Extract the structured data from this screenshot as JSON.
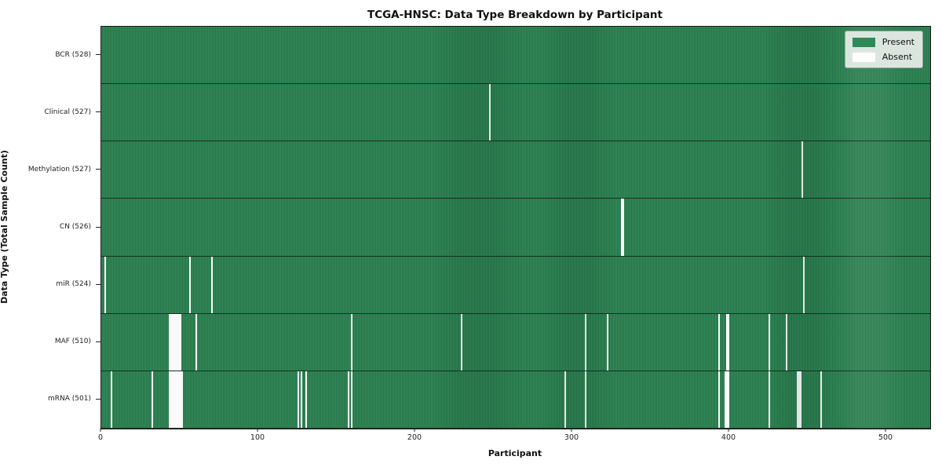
{
  "title": "TCGA-HNSC: Data Type Breakdown by Participant",
  "chart_data": {
    "type": "heatmap",
    "title": "TCGA-HNSC: Data Type Breakdown by Participant",
    "xlabel": "Participant",
    "ylabel": "Data Type (Total Sample Count)",
    "x_range": [
      0,
      528
    ],
    "x_ticks": [
      0,
      100,
      200,
      300,
      400,
      500
    ],
    "grid": false,
    "legend_position": "upper right",
    "legend": [
      {
        "label": "Present",
        "color": "#2e8b57"
      },
      {
        "label": "Absent",
        "color": "#ffffff"
      }
    ],
    "colors": {
      "present": "#2e8b57",
      "present_edge": "#215c3c",
      "absent": "#fafafa",
      "row_separator": "#17301f",
      "spine": "#1a1a1a"
    },
    "rows": [
      {
        "label": "BCR (528)",
        "total": 528,
        "absent_participants": []
      },
      {
        "label": "Clinical (527)",
        "total": 527,
        "absent_participants": [
          247
        ]
      },
      {
        "label": "Methylation (527)",
        "total": 527,
        "absent_participants": [
          446
        ]
      },
      {
        "label": "CN (526)",
        "total": 526,
        "absent_participants": [
          331,
          332
        ]
      },
      {
        "label": "miR (524)",
        "total": 524,
        "absent_participants": [
          2,
          56,
          70,
          447
        ]
      },
      {
        "label": "MAF (510)",
        "total": 510,
        "absent_participants": [
          43,
          44,
          45,
          46,
          47,
          48,
          49,
          50,
          60,
          159,
          229,
          308,
          322,
          393,
          398,
          399,
          425,
          436
        ]
      },
      {
        "label": "mRNA (501)",
        "total": 501,
        "absent_participants": [
          6,
          32,
          43,
          44,
          45,
          46,
          47,
          48,
          49,
          50,
          51,
          125,
          127,
          130,
          157,
          159,
          295,
          308,
          393,
          397,
          398,
          399,
          425,
          443,
          444,
          445,
          458
        ]
      }
    ]
  }
}
